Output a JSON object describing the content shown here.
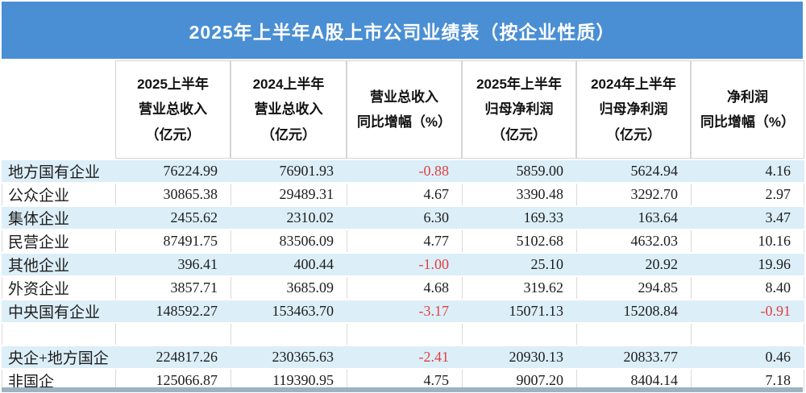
{
  "title": "2025年上半年A股上市公司业绩表（按企业性质）",
  "colors": {
    "banner_blue": "#4a8fd4",
    "row_alt_blue": "#dceef8",
    "negative_red": "#e04040",
    "cell_border": "#d9d9d9",
    "bottom_strip": "#9db3c3"
  },
  "chart_data": {
    "type": "table",
    "title": "2025年上半年A股上市公司业绩表（按企业性质）",
    "columns": [
      "",
      "2025上半年\n营业总收入\n（亿元）",
      "2024上半年\n营业总收入\n（亿元）",
      "营业总收入\n同比增幅（%）",
      "2025年上半年\n归母净利润\n（亿元）",
      "2024年上半年\n归母净利润\n（亿元）",
      "净利润\n同比增幅（%）"
    ],
    "rows": [
      {
        "label": "地方国有企业",
        "shade": "blue",
        "values": [
          "76224.99",
          "76901.93",
          "-0.88",
          "5859.00",
          "5624.94",
          "4.16"
        ]
      },
      {
        "label": "公众企业",
        "shade": "white",
        "values": [
          "30865.38",
          "29489.31",
          "4.67",
          "3390.48",
          "3292.70",
          "2.97"
        ]
      },
      {
        "label": "集体企业",
        "shade": "blue",
        "values": [
          "2455.62",
          "2310.02",
          "6.30",
          "169.33",
          "163.64",
          "3.47"
        ]
      },
      {
        "label": "民营企业",
        "shade": "white",
        "values": [
          "87491.75",
          "83506.09",
          "4.77",
          "5102.68",
          "4632.03",
          "10.16"
        ]
      },
      {
        "label": "其他企业",
        "shade": "blue",
        "values": [
          "396.41",
          "400.44",
          "-1.00",
          "25.10",
          "20.92",
          "19.96"
        ]
      },
      {
        "label": "外资企业",
        "shade": "white",
        "values": [
          "3857.71",
          "3685.09",
          "4.68",
          "319.62",
          "294.85",
          "8.40"
        ]
      },
      {
        "label": "中央国有企业",
        "shade": "blue",
        "values": [
          "148592.27",
          "153463.70",
          "-3.17",
          "15071.13",
          "15208.84",
          "-0.91"
        ]
      },
      {
        "label": "",
        "shade": "white",
        "values": [
          "",
          "",
          "",
          "",
          "",
          ""
        ]
      },
      {
        "label": "央企+地方国企",
        "shade": "blue",
        "values": [
          "224817.26",
          "230365.63",
          "-2.41",
          "20930.13",
          "20833.77",
          "0.46"
        ]
      },
      {
        "label": "非国企",
        "shade": "white",
        "values": [
          "125066.87",
          "119390.95",
          "4.75",
          "9007.20",
          "8404.14",
          "7.18"
        ]
      }
    ]
  }
}
